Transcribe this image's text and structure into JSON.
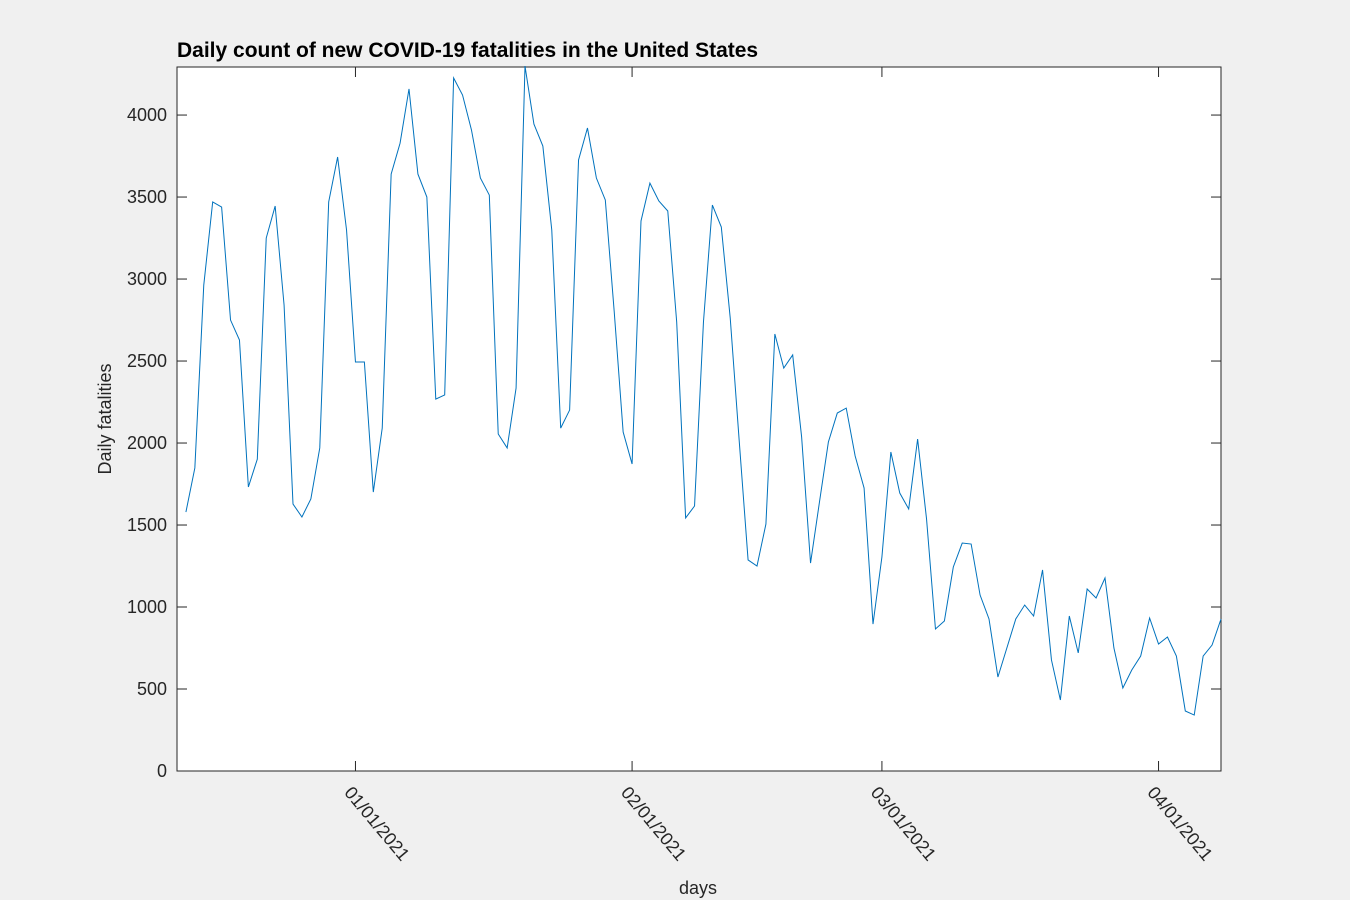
{
  "chart_data": {
    "type": "line",
    "title": "Daily count of new COVID-19 fatalities in the United States",
    "x_label": "days",
    "y_label": "Daily fatalities",
    "x": [
      "2020-12-13",
      "2020-12-14",
      "2020-12-15",
      "2020-12-16",
      "2020-12-17",
      "2020-12-18",
      "2020-12-19",
      "2020-12-20",
      "2020-12-21",
      "2020-12-22",
      "2020-12-23",
      "2020-12-24",
      "2020-12-25",
      "2020-12-26",
      "2020-12-27",
      "2020-12-28",
      "2020-12-29",
      "2020-12-30",
      "2020-12-31",
      "2021-01-01",
      "2021-01-02",
      "2021-01-03",
      "2021-01-04",
      "2021-01-05",
      "2021-01-06",
      "2021-01-07",
      "2021-01-08",
      "2021-01-09",
      "2021-01-10",
      "2021-01-11",
      "2021-01-12",
      "2021-01-13",
      "2021-01-14",
      "2021-01-15",
      "2021-01-16",
      "2021-01-17",
      "2021-01-18",
      "2021-01-19",
      "2021-01-20",
      "2021-01-21",
      "2021-01-22",
      "2021-01-23",
      "2021-01-24",
      "2021-01-25",
      "2021-01-26",
      "2021-01-27",
      "2021-01-28",
      "2021-01-29",
      "2021-01-30",
      "2021-01-31",
      "2021-02-01",
      "2021-02-02",
      "2021-02-03",
      "2021-02-04",
      "2021-02-05",
      "2021-02-06",
      "2021-02-07",
      "2021-02-08",
      "2021-02-09",
      "2021-02-10",
      "2021-02-11",
      "2021-02-12",
      "2021-02-13",
      "2021-02-14",
      "2021-02-15",
      "2021-02-16",
      "2021-02-17",
      "2021-02-18",
      "2021-02-19",
      "2021-02-20",
      "2021-02-21",
      "2021-02-22",
      "2021-02-23",
      "2021-02-24",
      "2021-02-25",
      "2021-02-26",
      "2021-02-27",
      "2021-02-28",
      "2021-03-01",
      "2021-03-02",
      "2021-03-03",
      "2021-03-04",
      "2021-03-05",
      "2021-03-06",
      "2021-03-07",
      "2021-03-08",
      "2021-03-09",
      "2021-03-10",
      "2021-03-11",
      "2021-03-12",
      "2021-03-13",
      "2021-03-14",
      "2021-03-15",
      "2021-03-16",
      "2021-03-17",
      "2021-03-18",
      "2021-03-19",
      "2021-03-20",
      "2021-03-21",
      "2021-03-22",
      "2021-03-23",
      "2021-03-24",
      "2021-03-25",
      "2021-03-26",
      "2021-03-27",
      "2021-03-28",
      "2021-03-29",
      "2021-03-30",
      "2021-03-31",
      "2021-04-01",
      "2021-04-02",
      "2021-04-03",
      "2021-04-04",
      "2021-04-05",
      "2021-04-06",
      "2021-04-07",
      "2021-04-08"
    ],
    "series": [
      {
        "name": "Daily fatalities",
        "color": "#0072bd",
        "values": [
          1579,
          1848,
          2963,
          3470,
          3439,
          2750,
          2628,
          1732,
          1902,
          3250,
          3445,
          2841,
          1628,
          1549,
          1659,
          1970,
          3470,
          3744,
          3299,
          2494,
          2494,
          1701,
          2091,
          3640,
          3829,
          4159,
          3640,
          3500,
          2268,
          2293,
          4226,
          4122,
          3909,
          3616,
          3512,
          2055,
          1970,
          2335,
          4299,
          3945,
          3811,
          3299,
          2091,
          2201,
          3726,
          3921,
          3616,
          3482,
          2800,
          2067,
          1872,
          3354,
          3585,
          3476,
          3415,
          2738,
          1543,
          1616,
          2738,
          3451,
          3317,
          2762,
          2018,
          1287,
          1250,
          1506,
          2665,
          2457,
          2537,
          2037,
          1268,
          1640,
          2006,
          2183,
          2213,
          1921,
          1726,
          896,
          1305,
          1945,
          1695,
          1598,
          2024,
          1537,
          866,
          915,
          1244,
          1390,
          1384,
          1073,
          927,
          573,
          750,
          927,
          1012,
          945,
          1226,
          677,
          433,
          945,
          720,
          1110,
          1055,
          1177,
          750,
          506,
          616,
          701,
          933,
          774,
          817,
          701,
          366,
          341,
          701,
          768,
          927
        ]
      }
    ],
    "xlim": [
      "2020-12-12",
      "2021-04-08"
    ],
    "xticks": [
      {
        "value": "2021-01-01",
        "label": "01/01/2021"
      },
      {
        "value": "2021-02-01",
        "label": "02/01/2021"
      },
      {
        "value": "2021-03-01",
        "label": "03/01/2021"
      },
      {
        "value": "2021-04-01",
        "label": "04/01/2021"
      }
    ],
    "ylim": [
      0,
      4293
    ],
    "yticks": [
      0,
      500,
      1000,
      1500,
      2000,
      2500,
      3000,
      3500,
      4000
    ]
  }
}
